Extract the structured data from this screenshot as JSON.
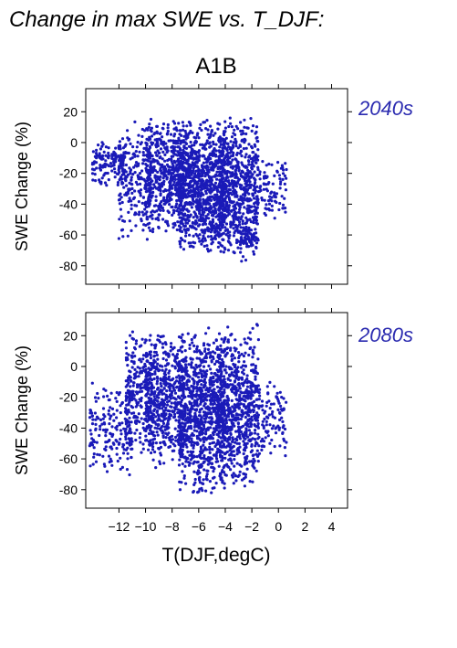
{
  "figure": {
    "title": "Change in max SWE vs. T_DJF:",
    "scenario": "A1B",
    "xlabel": "T(DJF,degC)",
    "point_color": "#1a1ab8",
    "period_color": "#2b2bb0"
  },
  "chart_data": [
    {
      "type": "scatter",
      "period": "2040s",
      "ylabel": "SWE Change (%)",
      "xlabel": "",
      "xlim": [
        -14.5,
        5.2
      ],
      "ylim": [
        -92,
        35
      ],
      "xticks": [
        -12,
        -10,
        -8,
        -6,
        -4,
        -2,
        0,
        2,
        4
      ],
      "yticks": [
        20,
        0,
        -20,
        -40,
        -60,
        -80
      ],
      "grid": false,
      "clusters": [
        {
          "x": [
            -14.0,
            -11.5
          ],
          "y": [
            -30,
            5
          ],
          "n": 140
        },
        {
          "x": [
            -12.0,
            -9.5
          ],
          "y": [
            -65,
            15
          ],
          "n": 220
        },
        {
          "x": [
            -10.0,
            -7.0
          ],
          "y": [
            -60,
            17
          ],
          "n": 520
        },
        {
          "x": [
            -7.5,
            -4.0
          ],
          "y": [
            -75,
            18
          ],
          "n": 950
        },
        {
          "x": [
            -4.5,
            -1.5
          ],
          "y": [
            -78,
            18
          ],
          "n": 650
        },
        {
          "x": [
            -3.0,
            -1.6
          ],
          "y": [
            -70,
            -55
          ],
          "n": 60
        },
        {
          "x": [
            -1.5,
            0.6
          ],
          "y": [
            -50,
            -10
          ],
          "n": 90
        }
      ]
    },
    {
      "type": "scatter",
      "period": "2080s",
      "ylabel": "SWE Change (%)",
      "xlabel": "T(DJF,degC)",
      "xlim": [
        -14.5,
        5.2
      ],
      "ylim": [
        -92,
        35
      ],
      "xticks": [
        -12,
        -10,
        -8,
        -6,
        -4,
        -2,
        0,
        2,
        4
      ],
      "yticks": [
        20,
        0,
        -20,
        -40,
        -60,
        -80
      ],
      "grid": false,
      "clusters": [
        {
          "x": [
            -14.2,
            -11.0
          ],
          "y": [
            -72,
            -10
          ],
          "n": 180
        },
        {
          "x": [
            -11.5,
            -9.5
          ],
          "y": [
            -60,
            26
          ],
          "n": 240
        },
        {
          "x": [
            -10.0,
            -7.0
          ],
          "y": [
            -70,
            26
          ],
          "n": 520
        },
        {
          "x": [
            -7.5,
            -4.0
          ],
          "y": [
            -85,
            27
          ],
          "n": 950
        },
        {
          "x": [
            -4.5,
            -1.5
          ],
          "y": [
            -82,
            28
          ],
          "n": 650
        },
        {
          "x": [
            -1.5,
            0.6
          ],
          "y": [
            -62,
            -5
          ],
          "n": 100
        }
      ]
    }
  ]
}
